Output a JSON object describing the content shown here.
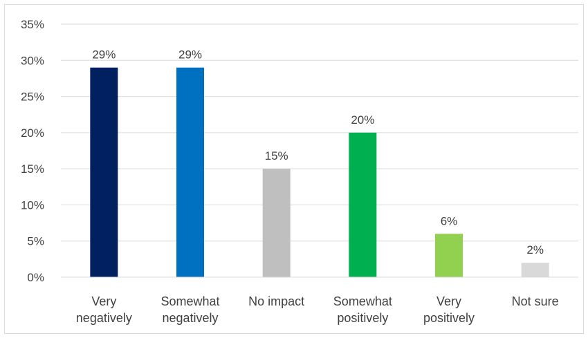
{
  "chart_data": {
    "type": "bar",
    "title": "",
    "xlabel": "",
    "ylabel": "",
    "categories": [
      [
        "Very",
        "negatively"
      ],
      [
        "Somewhat",
        "negatively"
      ],
      [
        "No impact"
      ],
      [
        "Somewhat",
        "positively"
      ],
      [
        "Very",
        "positively"
      ],
      [
        "Not sure"
      ]
    ],
    "values": [
      0.29,
      0.29,
      0.15,
      0.2,
      0.06,
      0.02
    ],
    "value_labels": [
      "29%",
      "29%",
      "15%",
      "20%",
      "6%",
      "2%"
    ],
    "bar_colors": [
      "#002060",
      "#0070C0",
      "#BFBFBF",
      "#00B050",
      "#92D050",
      "#D9D9D9"
    ],
    "ylim": [
      0,
      0.35
    ],
    "yticks": [
      0,
      0.05,
      0.1,
      0.15,
      0.2,
      0.25,
      0.3,
      0.35
    ],
    "ytick_labels": [
      "0%",
      "5%",
      "10%",
      "15%",
      "20%",
      "25%",
      "30%",
      "35%"
    ],
    "grid": true,
    "legend": "none"
  }
}
